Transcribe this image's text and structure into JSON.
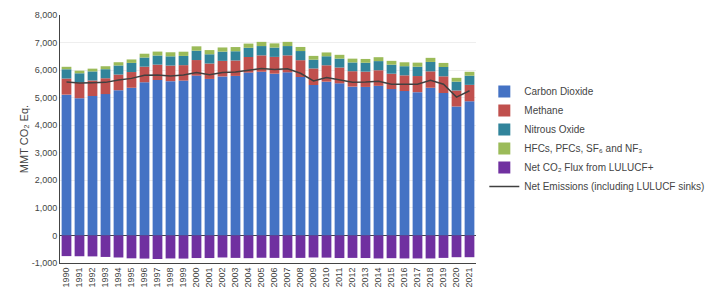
{
  "chart_data": {
    "type": "bar",
    "stacked": true,
    "categories": [
      "1990",
      "1991",
      "1992",
      "1993",
      "1994",
      "1995",
      "1996",
      "1997",
      "1998",
      "1999",
      "2000",
      "2001",
      "2002",
      "2003",
      "2004",
      "2005",
      "2006",
      "2007",
      "2008",
      "2009",
      "2010",
      "2011",
      "2012",
      "2013",
      "2014",
      "2015",
      "2016",
      "2017",
      "2018",
      "2019",
      "2020",
      "2021"
    ],
    "series": [
      {
        "name": "Carbon Dioxide",
        "color": "#4472C4",
        "values": [
          5110,
          4980,
          5060,
          5130,
          5270,
          5360,
          5560,
          5640,
          5600,
          5620,
          5800,
          5680,
          5770,
          5790,
          5910,
          5940,
          5870,
          5920,
          5750,
          5460,
          5580,
          5520,
          5400,
          5390,
          5430,
          5310,
          5240,
          5200,
          5360,
          5170,
          4680,
          4870
        ]
      },
      {
        "name": "Methane",
        "color": "#C0504D",
        "values": [
          585,
          575,
          565,
          575,
          570,
          570,
          565,
          560,
          565,
          560,
          565,
          560,
          565,
          560,
          565,
          595,
          610,
          615,
          610,
          600,
          595,
          575,
          560,
          555,
          565,
          560,
          570,
          585,
          595,
          605,
          580,
          595
        ]
      },
      {
        "name": "Nitrous Oxide",
        "color": "#31849B",
        "values": [
          335,
          330,
          328,
          328,
          328,
          332,
          332,
          330,
          335,
          335,
          340,
          335,
          335,
          335,
          335,
          338,
          338,
          338,
          332,
          318,
          328,
          322,
          318,
          322,
          332,
          328,
          332,
          338,
          342,
          338,
          322,
          332
        ]
      },
      {
        "name": "HFCs, PFCs, SF₆ and NF₃",
        "color": "#9BBB59",
        "values": [
          90,
          95,
          100,
          108,
          118,
          125,
          138,
          142,
          148,
          153,
          158,
          152,
          152,
          152,
          152,
          152,
          152,
          152,
          148,
          138,
          138,
          138,
          138,
          138,
          142,
          138,
          142,
          148,
          148,
          148,
          138,
          142
        ]
      },
      {
        "name": "Net CO₂ Flux from LULUCF+",
        "color": "#7030A0",
        "values": [
          -750,
          -755,
          -760,
          -780,
          -800,
          -830,
          -840,
          -855,
          -835,
          -840,
          -820,
          -820,
          -800,
          -815,
          -825,
          -810,
          -815,
          -815,
          -815,
          -800,
          -805,
          -820,
          -815,
          -820,
          -835,
          -825,
          -835,
          -835,
          -835,
          -815,
          -790,
          -790
        ]
      },
      {
        "name": "Net Emissions (including LULUCF sinks)",
        "type": "line",
        "color": "#404040",
        "values": [
          5565,
          5530,
          5545,
          5555,
          5640,
          5700,
          5815,
          5825,
          5790,
          5820,
          5910,
          5830,
          5910,
          5930,
          5995,
          6060,
          6020,
          6050,
          5885,
          5610,
          5730,
          5650,
          5560,
          5565,
          5595,
          5490,
          5490,
          5490,
          5630,
          5490,
          5020,
          5250
        ]
      }
    ],
    "ylabel": "MMT CO₂ Eq.",
    "ylim": [
      -1000,
      8000
    ],
    "yticks": [
      {
        "value": -1000,
        "label": "-1,000"
      },
      0,
      {
        "value": 1000,
        "label": "1,000"
      },
      {
        "value": 2000,
        "label": "2,000"
      },
      {
        "value": 3000,
        "label": "3,000"
      },
      {
        "value": 4000,
        "label": "4,000"
      },
      {
        "value": 5000,
        "label": "5,000"
      },
      {
        "value": 6000,
        "label": "6,000"
      },
      {
        "value": 7000,
        "label": "7,000"
      },
      {
        "value": 8000,
        "label": "8,000"
      }
    ],
    "grid": true,
    "legend": "right"
  }
}
